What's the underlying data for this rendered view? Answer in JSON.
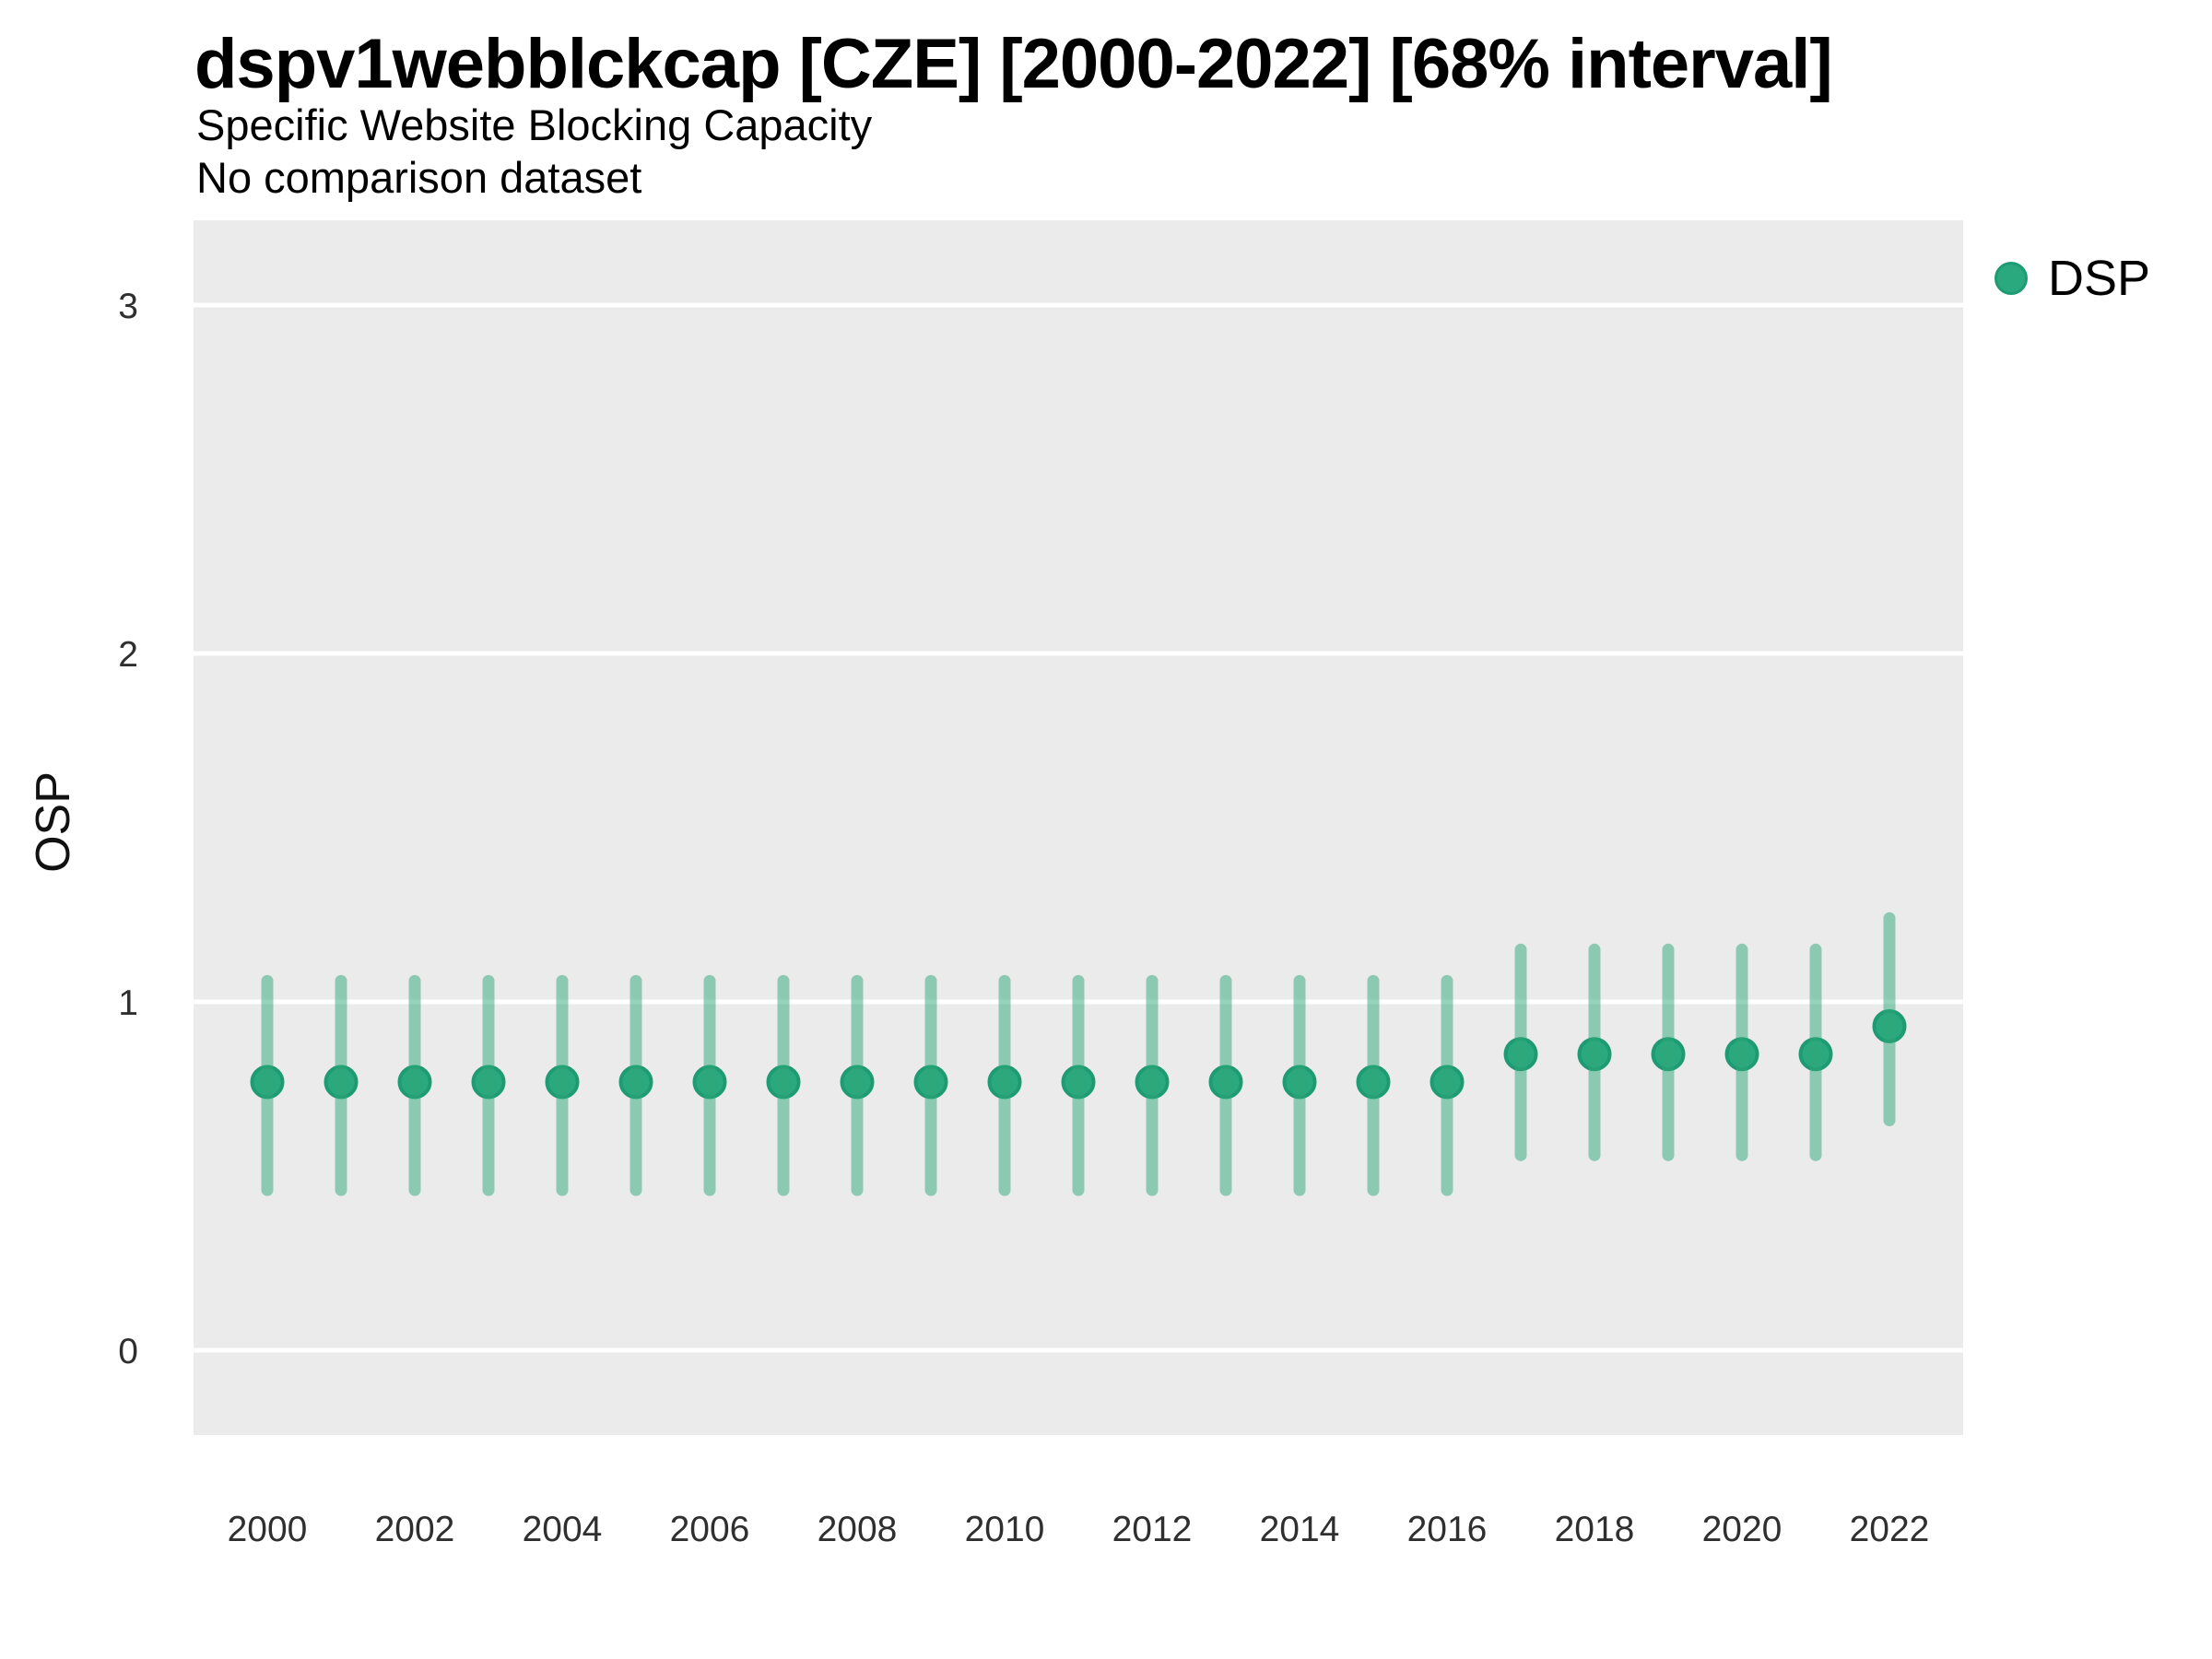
{
  "header": {
    "title": "dspv1webblckcap [CZE] [2000-2022] [68% interval]",
    "subtitle": "Specific Website Blocking Capacity",
    "note": "No comparison dataset"
  },
  "legend": {
    "position": "top-right",
    "items": [
      {
        "label": "DSP",
        "marker": "circle-icon",
        "color": "#2aa87e"
      }
    ]
  },
  "axes": {
    "y_label": "OSP",
    "y_ticks": [
      "0",
      "1",
      "2",
      "3"
    ],
    "x_ticks": [
      "2000",
      "2002",
      "2004",
      "2006",
      "2008",
      "2010",
      "2012",
      "2014",
      "2016",
      "2018",
      "2020",
      "2022"
    ]
  },
  "style": {
    "panel_background": "#ebebeb",
    "gridline_color": "#ffffff",
    "point_fill": "#2aa87e",
    "point_stroke": "#1f9b73",
    "interval_color": "rgba(46,167,122,0.5)",
    "axis_text_color": "#2f2f2f",
    "title_color": "#000000"
  },
  "chart_data": {
    "type": "scatter",
    "title": "dspv1webblckcap [CZE] [2000-2022] [68% interval]",
    "subtitle": "Specific Website Blocking Capacity",
    "annotation": "No comparison dataset",
    "xlabel": "",
    "ylabel": "OSP",
    "ylim": [
      0,
      3
    ],
    "x_range_shown": [
      1999,
      2023
    ],
    "y_axis_ticks": [
      0,
      1,
      2,
      3
    ],
    "x_axis_ticks": [
      2000,
      2002,
      2004,
      2006,
      2008,
      2010,
      2012,
      2014,
      2016,
      2018,
      2020,
      2022
    ],
    "grid": "horizontal-major-only",
    "legend_position": "top-right",
    "interval_level": "68%",
    "x": [
      2000,
      2001,
      2002,
      2003,
      2004,
      2005,
      2006,
      2007,
      2008,
      2009,
      2010,
      2011,
      2012,
      2013,
      2014,
      2015,
      2016,
      2017,
      2018,
      2019,
      2020,
      2021,
      2022
    ],
    "series": [
      {
        "name": "DSP",
        "values": [
          0.77,
          0.77,
          0.77,
          0.77,
          0.77,
          0.77,
          0.77,
          0.77,
          0.77,
          0.77,
          0.77,
          0.77,
          0.77,
          0.77,
          0.77,
          0.77,
          0.77,
          0.85,
          0.85,
          0.85,
          0.85,
          0.85,
          0.93
        ],
        "lower_68": [
          0.46,
          0.46,
          0.46,
          0.46,
          0.46,
          0.46,
          0.46,
          0.46,
          0.46,
          0.46,
          0.46,
          0.46,
          0.46,
          0.46,
          0.46,
          0.46,
          0.46,
          0.56,
          0.56,
          0.56,
          0.56,
          0.56,
          0.66
        ],
        "upper_68": [
          1.06,
          1.06,
          1.06,
          1.06,
          1.06,
          1.06,
          1.06,
          1.06,
          1.06,
          1.06,
          1.06,
          1.06,
          1.06,
          1.06,
          1.06,
          1.06,
          1.06,
          1.15,
          1.15,
          1.15,
          1.15,
          1.15,
          1.24
        ]
      }
    ]
  }
}
